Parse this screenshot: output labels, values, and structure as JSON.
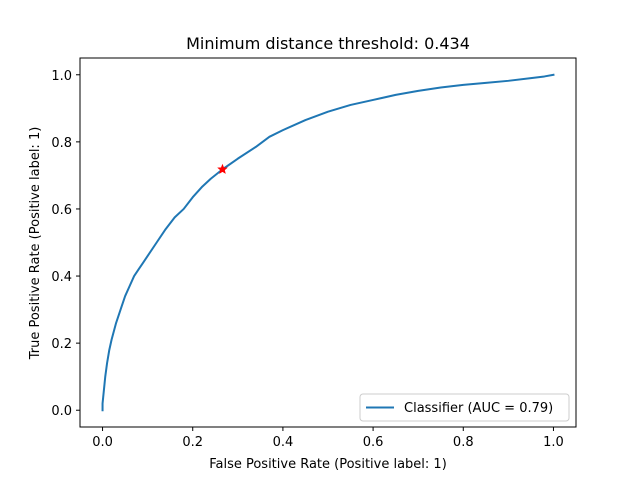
{
  "chart_data": {
    "type": "line",
    "title": "Minimum distance threshold: 0.434",
    "xlabel": "False Positive Rate (Positive label: 1)",
    "ylabel": "True Positive Rate (Positive label: 1)",
    "xlim": [
      -0.05,
      1.05
    ],
    "ylim": [
      -0.05,
      1.05
    ],
    "xticks": [
      0.0,
      0.2,
      0.4,
      0.6,
      0.8,
      1.0
    ],
    "yticks": [
      0.0,
      0.2,
      0.4,
      0.6,
      0.8,
      1.0
    ],
    "tick_labels": [
      "0.0",
      "0.2",
      "0.4",
      "0.6",
      "0.8",
      "1.0"
    ],
    "grid": false,
    "legend_position": "bottom-right",
    "series": [
      {
        "name": "Classifier (AUC = 0.79)",
        "color": "#1f77b4",
        "x": [
          0.0,
          0.0,
          0.003,
          0.006,
          0.01,
          0.015,
          0.02,
          0.03,
          0.04,
          0.05,
          0.06,
          0.07,
          0.08,
          0.09,
          0.1,
          0.12,
          0.14,
          0.16,
          0.18,
          0.2,
          0.22,
          0.24,
          0.266,
          0.3,
          0.34,
          0.37,
          0.4,
          0.45,
          0.5,
          0.55,
          0.6,
          0.65,
          0.7,
          0.75,
          0.8,
          0.85,
          0.9,
          0.95,
          0.98,
          1.0
        ],
        "y": [
          0.0,
          0.02,
          0.06,
          0.1,
          0.14,
          0.18,
          0.21,
          0.26,
          0.3,
          0.34,
          0.37,
          0.4,
          0.42,
          0.44,
          0.46,
          0.5,
          0.54,
          0.575,
          0.6,
          0.635,
          0.665,
          0.69,
          0.718,
          0.75,
          0.785,
          0.815,
          0.835,
          0.865,
          0.89,
          0.91,
          0.925,
          0.94,
          0.952,
          0.962,
          0.97,
          0.976,
          0.982,
          0.99,
          0.995,
          1.0
        ]
      }
    ],
    "marker": {
      "x": 0.266,
      "y": 0.718,
      "color": "#ff0000",
      "symbol": "star"
    }
  }
}
